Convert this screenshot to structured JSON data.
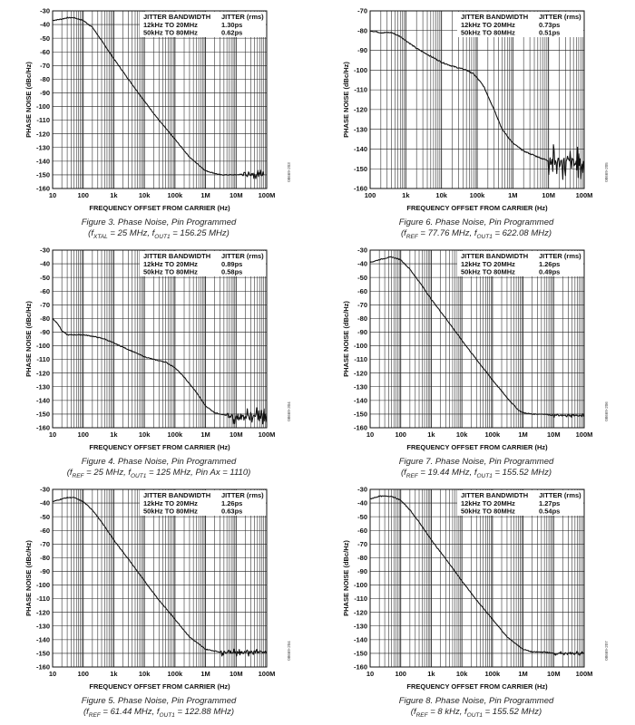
{
  "chart_data": [
    {
      "type": "line",
      "figure": "Figure 3. Phase Noise, Pin Programmed",
      "subtitle": "(fXTAL = 25 MHz, fOUT1 = 156.25 MHz)",
      "xlabel": "FREQUENCY OFFSET FROM CARRIER (Hz)",
      "ylabel": "PHASE NOISE (dBc/Hz)",
      "x_scale": "log",
      "xlim": [
        10,
        100000000
      ],
      "ylim": [
        -160,
        -30
      ],
      "x_ticks": [
        10,
        100,
        1000,
        10000,
        100000,
        1000000,
        10000000,
        100000000
      ],
      "x_tick_labels": [
        "10",
        "100",
        "1k",
        "10k",
        "100k",
        "1M",
        "10M",
        "100M"
      ],
      "y_ticks": [
        -30,
        -40,
        -50,
        -60,
        -70,
        -80,
        -90,
        -100,
        -110,
        -120,
        -130,
        -140,
        -150,
        -160
      ],
      "grid": true,
      "legend": {
        "header": [
          "JITTER BANDWIDTH",
          "JITTER (rms)"
        ],
        "rows": [
          [
            "12kHz TO 20MHz",
            "1.30ps"
          ],
          [
            "50kHz TO 80MHz",
            "0.62ps"
          ]
        ],
        "placement": "top-right"
      },
      "side_id": "08669-203",
      "x": [
        10,
        20,
        30,
        50,
        100,
        200,
        500,
        1000,
        3000,
        10000,
        30000,
        100000,
        300000,
        1000000,
        3000000,
        10000000,
        30000000,
        60000000,
        80000000
      ],
      "y": [
        -37,
        -36,
        -35,
        -35,
        -37,
        -42,
        -55,
        -65,
        -80,
        -96,
        -110,
        -124,
        -137,
        -147,
        -150,
        -150,
        -149,
        -150,
        -149
      ],
      "noise": {
        "from": 15000000,
        "amp": 4
      }
    },
    {
      "type": "line",
      "figure": "Figure 6. Phase Noise, Pin Programmed",
      "subtitle": "(fREF = 77.76 MHz, fOUT1 = 622.08 MHz)",
      "xlabel": "FREQUENCY OFFSET FROM CARRIER (Hz)",
      "ylabel": "PHASE NOISE (dBc/Hz)",
      "x_scale": "log",
      "xlim": [
        100,
        100000000
      ],
      "ylim": [
        -160,
        -70
      ],
      "x_ticks": [
        100,
        1000,
        10000,
        100000,
        1000000,
        10000000,
        100000000
      ],
      "x_tick_labels": [
        "100",
        "1k",
        "10k",
        "100k",
        "1M",
        "10M",
        "100M"
      ],
      "y_ticks": [
        -70,
        -80,
        -90,
        -100,
        -110,
        -120,
        -130,
        -140,
        -150,
        -160
      ],
      "grid": true,
      "legend": {
        "header": [
          "JITTER BANDWIDTH",
          "JITTER (rms)"
        ],
        "rows": [
          [
            "12kHz TO 20MHz",
            "0.73ps"
          ],
          [
            "50kHz TO 80MHz",
            "0.51ps"
          ]
        ],
        "placement": "top-right"
      },
      "side_id": "08669-205",
      "x": [
        100,
        200,
        400,
        700,
        1000,
        2000,
        5000,
        10000,
        20000,
        50000,
        80000,
        100000,
        150000,
        200000,
        300000,
        500000,
        1000000,
        2000000,
        5000000,
        10000000,
        30000000,
        100000000
      ],
      "y": [
        -80,
        -81,
        -81,
        -83,
        -85,
        -89,
        -93,
        -96,
        -98,
        -100,
        -102,
        -104,
        -108,
        -113,
        -120,
        -130,
        -137,
        -141,
        -144,
        -146,
        -147,
        -148
      ],
      "noise": {
        "from": 10000000,
        "amp": 9
      }
    },
    {
      "type": "line",
      "figure": "Figure 4. Phase Noise, Pin Programmed",
      "subtitle": "(fREF = 25 MHz, fOUT1 = 125 MHz, Pin Ax = 1110)",
      "xlabel": "FREQUENCY OFFSET FROM CARRIER (Hz)",
      "ylabel": "PHASE NOISE (dBc/Hz)",
      "x_scale": "log",
      "xlim": [
        10,
        100000000
      ],
      "ylim": [
        -160,
        -30
      ],
      "x_ticks": [
        10,
        100,
        1000,
        10000,
        100000,
        1000000,
        10000000,
        100000000
      ],
      "x_tick_labels": [
        "10",
        "100",
        "1k",
        "10k",
        "100k",
        "1M",
        "10M",
        "100M"
      ],
      "y_ticks": [
        -30,
        -40,
        -50,
        -60,
        -70,
        -80,
        -90,
        -100,
        -110,
        -120,
        -130,
        -140,
        -150,
        -160
      ],
      "grid": true,
      "legend": {
        "header": [
          "JITTER BANDWIDTH",
          "JITTER (rms)"
        ],
        "rows": [
          [
            "12kHz TO 20MHz",
            "0.89ps"
          ],
          [
            "50kHz TO 80MHz",
            "0.58ps"
          ]
        ],
        "placement": "top-right"
      },
      "side_id": "08669-304",
      "x": [
        10,
        15,
        20,
        30,
        50,
        100,
        200,
        500,
        1000,
        2000,
        5000,
        10000,
        20000,
        50000,
        100000,
        200000,
        500000,
        1000000,
        2000000,
        5000000,
        10000000,
        30000000,
        100000000
      ],
      "y": [
        -80,
        -84,
        -89,
        -92,
        -92,
        -92,
        -93,
        -95,
        -98,
        -101,
        -105,
        -108,
        -110,
        -112,
        -116,
        -123,
        -134,
        -144,
        -149,
        -151,
        -152,
        -152,
        -152
      ],
      "noise": {
        "from": 5000000,
        "amp": 7
      }
    },
    {
      "type": "line",
      "figure": "Figure 7. Phase Noise, Pin Programmed",
      "subtitle": "(fREF = 19.44 MHz, fOUT1 = 155.52 MHz)",
      "xlabel": "FREQUENCY OFFSET FROM CARRIER (Hz)",
      "ylabel": "PHASE NOISE (dBc/Hz)",
      "x_scale": "log",
      "xlim": [
        10,
        100000000
      ],
      "ylim": [
        -160,
        -30
      ],
      "x_ticks": [
        10,
        100,
        1000,
        10000,
        100000,
        1000000,
        10000000,
        100000000
      ],
      "x_tick_labels": [
        "10",
        "100",
        "1k",
        "10k",
        "100k",
        "1M",
        "10M",
        "100M"
      ],
      "y_ticks": [
        -30,
        -40,
        -50,
        -60,
        -70,
        -80,
        -90,
        -100,
        -110,
        -120,
        -130,
        -140,
        -150,
        -160
      ],
      "grid": true,
      "legend": {
        "header": [
          "JITTER BANDWIDTH",
          "JITTER (rms)"
        ],
        "rows": [
          [
            "12kHz TO 20MHz",
            "1.26ps"
          ],
          [
            "50kHz TO 80MHz",
            "0.49ps"
          ]
        ],
        "placement": "top-right"
      },
      "side_id": "08669-206",
      "x": [
        10,
        20,
        30,
        50,
        100,
        200,
        500,
        1000,
        3000,
        10000,
        30000,
        100000,
        300000,
        700000,
        1000000,
        2000000,
        5000000,
        10000000,
        100000000
      ],
      "y": [
        -39,
        -37,
        -36,
        -35,
        -37,
        -44,
        -56,
        -66,
        -80,
        -96,
        -110,
        -125,
        -138,
        -147,
        -149,
        -150,
        -150,
        -151,
        -151
      ],
      "noise": {
        "from": 10000000,
        "amp": 1.5
      }
    },
    {
      "type": "line",
      "figure": "Figure 5. Phase Noise, Pin Programmed",
      "subtitle": "(fREF = 61.44 MHz, fOUT1 = 122.88 MHz)",
      "xlabel": "FREQUENCY OFFSET FROM CARRIER (Hz)",
      "ylabel": "PHASE NOISE (dBc/Hz)",
      "x_scale": "log",
      "xlim": [
        10,
        100000000
      ],
      "ylim": [
        -160,
        -30
      ],
      "x_ticks": [
        10,
        100,
        1000,
        10000,
        100000,
        1000000,
        10000000,
        100000000
      ],
      "x_tick_labels": [
        "10",
        "100",
        "1k",
        "10k",
        "100k",
        "1M",
        "10M",
        "100M"
      ],
      "y_ticks": [
        -30,
        -40,
        -50,
        -60,
        -70,
        -80,
        -90,
        -100,
        -110,
        -120,
        -130,
        -140,
        -150,
        -160
      ],
      "grid": true,
      "legend": {
        "header": [
          "JITTER BANDWIDTH",
          "JITTER (rms)"
        ],
        "rows": [
          [
            "12kHz TO 20MHz",
            "1.26ps"
          ],
          [
            "50kHz TO 80MHz",
            "0.63ps"
          ]
        ],
        "placement": "top-right"
      },
      "side_id": "08669-204",
      "x": [
        10,
        20,
        30,
        50,
        100,
        200,
        500,
        1000,
        3000,
        10000,
        30000,
        100000,
        300000,
        1000000,
        3000000,
        10000000,
        30000000,
        100000000
      ],
      "y": [
        -39,
        -37,
        -36,
        -36,
        -39,
        -45,
        -57,
        -67,
        -81,
        -97,
        -111,
        -125,
        -138,
        -147,
        -149,
        -149,
        -149,
        -149
      ],
      "noise": {
        "from": 3000000,
        "amp": 3
      }
    },
    {
      "type": "line",
      "figure": "Figure 8. Phase Noise, Pin Programmed",
      "subtitle": "(fREF = 8 kHz, fOUT1 = 155.52 MHz)",
      "xlabel": "FREQUENCY OFFSET FROM CARRIER (Hz)",
      "ylabel": "PHASE NOISE (dBc/Hz)",
      "x_scale": "log",
      "xlim": [
        10,
        100000000
      ],
      "ylim": [
        -160,
        -30
      ],
      "x_ticks": [
        10,
        100,
        1000,
        10000,
        100000,
        1000000,
        10000000,
        100000000
      ],
      "x_tick_labels": [
        "10",
        "100",
        "1k",
        "10k",
        "100k",
        "1M",
        "10M",
        "100M"
      ],
      "y_ticks": [
        -30,
        -40,
        -50,
        -60,
        -70,
        -80,
        -90,
        -100,
        -110,
        -120,
        -130,
        -140,
        -150,
        -160
      ],
      "grid": true,
      "legend": {
        "header": [
          "JITTER BANDWIDTH",
          "JITTER (rms)"
        ],
        "rows": [
          [
            "12kHz TO 20MHz",
            "1.27ps"
          ],
          [
            "50kHz TO 80MHz",
            "0.54ps"
          ]
        ],
        "placement": "top-right"
      },
      "side_id": "08669-207",
      "x": [
        10,
        20,
        30,
        50,
        100,
        200,
        500,
        1000,
        3000,
        10000,
        30000,
        100000,
        300000,
        1000000,
        2000000,
        5000000,
        10000000,
        100000000
      ],
      "y": [
        -37,
        -35,
        -35,
        -35,
        -38,
        -45,
        -57,
        -67,
        -81,
        -97,
        -111,
        -125,
        -138,
        -147,
        -149,
        -149,
        -150,
        -150
      ],
      "noise": {
        "from": 10000000,
        "amp": 1.5
      }
    }
  ],
  "colors": {
    "ink": "#111111",
    "grid": "#222222",
    "background": "#ffffff"
  }
}
